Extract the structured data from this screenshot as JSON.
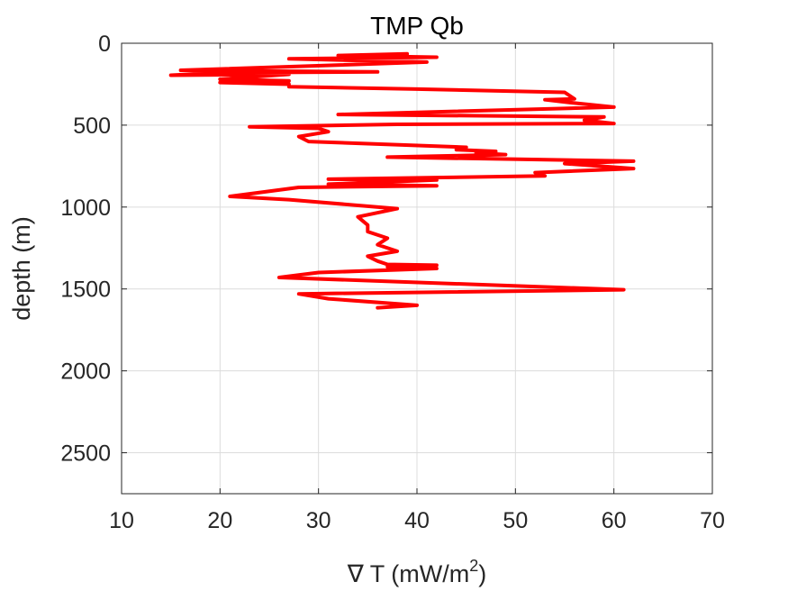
{
  "chart_data": {
    "type": "line",
    "title": "TMP Qb",
    "xlabel": "∇ T (mW/m",
    "xlabel_superscript": "2",
    "xlabel_close": ")",
    "ylabel": "depth (m)",
    "xlim": [
      10,
      70
    ],
    "ylim": [
      0,
      2750
    ],
    "y_reversed": true,
    "grid": true,
    "x_ticks": [
      10,
      20,
      30,
      40,
      50,
      60,
      70
    ],
    "y_ticks": [
      0,
      500,
      1000,
      1500,
      2000,
      2500
    ],
    "series": [
      {
        "color": "#ff0000",
        "x": [
          39,
          32,
          42,
          27,
          41,
          16,
          36,
          20,
          15,
          27,
          20,
          27,
          20,
          27,
          27,
          40,
          55,
          56,
          53,
          56,
          60,
          32,
          59,
          57,
          60,
          38,
          23,
          30,
          31,
          28,
          29,
          45,
          44,
          48,
          46,
          49,
          37,
          62,
          55,
          62,
          52,
          53,
          31,
          42,
          31,
          42,
          28,
          21,
          27,
          38,
          34,
          35,
          35,
          37,
          36,
          38,
          35,
          36,
          37,
          42,
          37,
          42,
          30,
          26,
          61,
          28,
          31,
          40,
          36
        ],
        "y": [
          65,
          75,
          85,
          95,
          115,
          165,
          175,
          180,
          195,
          190,
          220,
          230,
          240,
          250,
          265,
          280,
          300,
          340,
          345,
          365,
          390,
          435,
          450,
          470,
          490,
          495,
          510,
          520,
          540,
          570,
          600,
          635,
          650,
          660,
          670,
          680,
          695,
          720,
          735,
          765,
          790,
          810,
          830,
          835,
          860,
          870,
          880,
          935,
          955,
          1010,
          1060,
          1110,
          1150,
          1190,
          1230,
          1270,
          1300,
          1330,
          1350,
          1355,
          1365,
          1375,
          1400,
          1430,
          1505,
          1530,
          1560,
          1600,
          1615
        ]
      }
    ]
  }
}
